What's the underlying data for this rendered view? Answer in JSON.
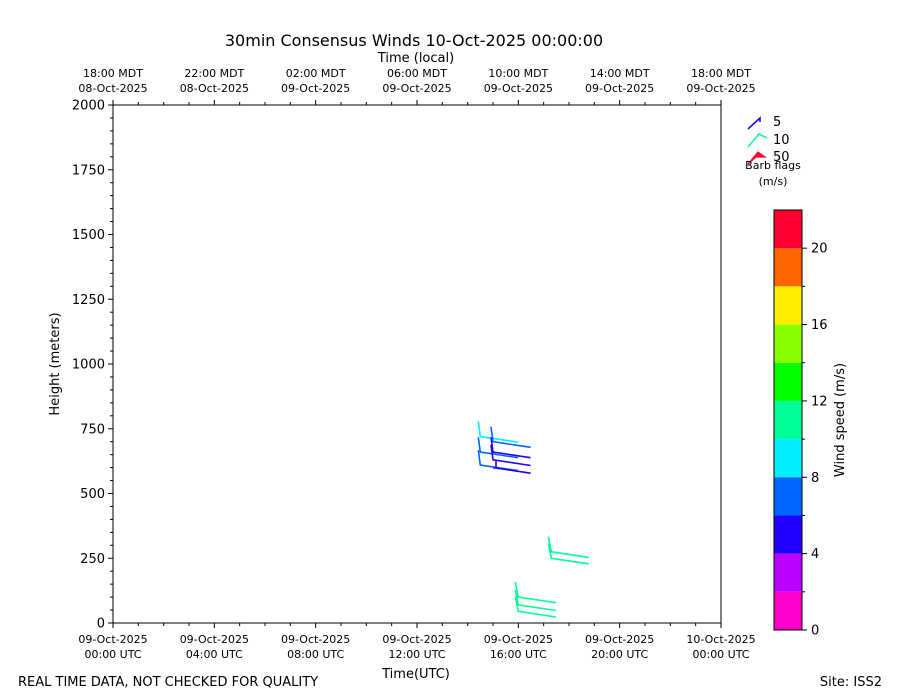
{
  "chart_data": {
    "type": "barb",
    "title": "30min Consensus Winds 10-Oct-2025 00:00:00",
    "top_axis_label": "Time (local)",
    "xlabel": "Time(UTC)",
    "ylabel": "Height (meters)",
    "footer_left": "REAL TIME DATA, NOT CHECKED FOR QUALITY",
    "footer_right": "Site: ISS2",
    "xlim_hours": [
      0,
      24
    ],
    "ylim": [
      0,
      2000
    ],
    "grid": false,
    "x_ticks_utc": [
      {
        "hour": 0,
        "line1": "09-Oct-2025",
        "line2": "00:00 UTC"
      },
      {
        "hour": 4,
        "line1": "09-Oct-2025",
        "line2": "04:00 UTC"
      },
      {
        "hour": 8,
        "line1": "09-Oct-2025",
        "line2": "08:00 UTC"
      },
      {
        "hour": 12,
        "line1": "09-Oct-2025",
        "line2": "12:00 UTC"
      },
      {
        "hour": 16,
        "line1": "09-Oct-2025",
        "line2": "16:00 UTC"
      },
      {
        "hour": 20,
        "line1": "09-Oct-2025",
        "line2": "20:00 UTC"
      },
      {
        "hour": 24,
        "line1": "10-Oct-2025",
        "line2": "00:00 UTC"
      }
    ],
    "x_ticks_local": [
      {
        "hour": 0,
        "line1": "18:00 MDT",
        "line2": "08-Oct-2025"
      },
      {
        "hour": 4,
        "line1": "22:00 MDT",
        "line2": "08-Oct-2025"
      },
      {
        "hour": 8,
        "line1": "02:00 MDT",
        "line2": "09-Oct-2025"
      },
      {
        "hour": 12,
        "line1": "06:00 MDT",
        "line2": "09-Oct-2025"
      },
      {
        "hour": 16,
        "line1": "10:00 MDT",
        "line2": "09-Oct-2025"
      },
      {
        "hour": 20,
        "line1": "14:00 MDT",
        "line2": "09-Oct-2025"
      },
      {
        "hour": 24,
        "line1": "18:00 MDT",
        "line2": "09-Oct-2025"
      }
    ],
    "y_ticks": [
      "0",
      "250",
      "500",
      "750",
      "1000",
      "1250",
      "1500",
      "1750",
      "2000"
    ],
    "legend": {
      "entries": [
        {
          "label": "5",
          "color": "#2200ff"
        },
        {
          "label": "10",
          "color": "#00ff99"
        },
        {
          "label": "50",
          "color": "#ff0033"
        }
      ],
      "caption_line1": "Barb flags",
      "caption_line2": "(m/s)"
    },
    "colorbar": {
      "label": "Wind speed (m/s)",
      "ticks": [
        "0",
        "4",
        "8",
        "12",
        "16",
        "20"
      ],
      "range": [
        0,
        22
      ],
      "colors": [
        "#ff00cc",
        "#bb00ff",
        "#2200ff",
        "#0066ff",
        "#00eeff",
        "#00ff99",
        "#00ff00",
        "#88ff00",
        "#ffee00",
        "#ff6600",
        "#ff0033"
      ]
    },
    "barbs": [
      {
        "hour": 14.5,
        "height": 720,
        "speed": 8.5
      },
      {
        "hour": 14.5,
        "height": 660,
        "speed": 6.5
      },
      {
        "hour": 14.5,
        "height": 610,
        "speed": 6.5
      },
      {
        "hour": 15.0,
        "height": 700,
        "speed": 6.0
      },
      {
        "hour": 15.0,
        "height": 660,
        "speed": 5.0
      },
      {
        "hour": 15.0,
        "height": 630,
        "speed": 5.0
      },
      {
        "hour": 15.0,
        "height": 600,
        "speed": 4.5
      },
      {
        "hour": 17.3,
        "height": 275,
        "speed": 11.0
      },
      {
        "hour": 17.3,
        "height": 250,
        "speed": 11.0
      },
      {
        "hour": 16.0,
        "height": 100,
        "speed": 11.0
      },
      {
        "hour": 16.0,
        "height": 70,
        "speed": 11.0
      },
      {
        "hour": 16.0,
        "height": 45,
        "speed": 11.0
      }
    ]
  }
}
